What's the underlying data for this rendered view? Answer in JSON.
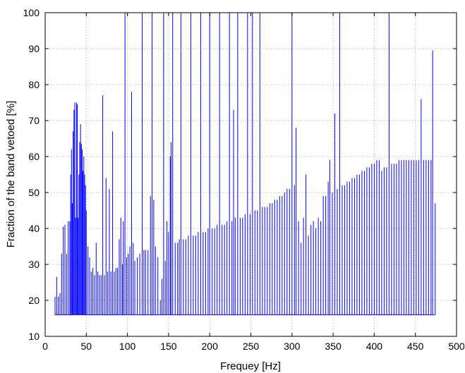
{
  "chart_data": {
    "type": "line",
    "title": "",
    "xlabel": "Frequey [Hz]",
    "ylabel": "Fraction of the band vetoed [%]",
    "xlim": [
      0,
      500
    ],
    "ylim": [
      10,
      100
    ],
    "xticks": [
      0,
      50,
      100,
      150,
      200,
      250,
      300,
      350,
      400,
      450,
      500
    ],
    "yticks": [
      10,
      20,
      30,
      40,
      50,
      60,
      70,
      80,
      90,
      100
    ],
    "grid": true,
    "legend": "none",
    "series": [
      {
        "color": "#0000ff",
        "baseline": 16,
        "x_range": [
          12,
          474
        ],
        "spikes": [
          [
            12,
            21
          ],
          [
            14,
            26.5
          ],
          [
            16,
            21
          ],
          [
            18,
            22
          ],
          [
            20,
            33
          ],
          [
            22,
            40.5
          ],
          [
            24,
            41
          ],
          [
            26,
            33
          ],
          [
            28,
            42
          ],
          [
            30,
            42
          ],
          [
            31,
            55
          ],
          [
            32,
            62
          ],
          [
            33,
            47
          ],
          [
            34,
            67
          ],
          [
            35,
            73
          ],
          [
            36,
            75
          ],
          [
            37,
            43
          ],
          [
            38,
            75
          ],
          [
            39,
            74.5
          ],
          [
            40,
            43
          ],
          [
            41,
            55
          ],
          [
            42,
            64
          ],
          [
            43,
            69
          ],
          [
            44,
            63.5
          ],
          [
            45,
            62
          ],
          [
            46,
            56
          ],
          [
            47,
            60
          ],
          [
            48,
            55
          ],
          [
            49,
            52
          ],
          [
            50,
            45
          ],
          [
            52,
            35
          ],
          [
            54,
            32
          ],
          [
            56,
            28
          ],
          [
            58,
            29
          ],
          [
            60,
            27
          ],
          [
            62,
            36
          ],
          [
            64,
            28
          ],
          [
            66,
            27
          ],
          [
            68,
            27
          ],
          [
            70,
            77
          ],
          [
            72,
            27
          ],
          [
            74,
            54
          ],
          [
            76,
            28
          ],
          [
            78,
            51
          ],
          [
            80,
            28
          ],
          [
            82,
            67
          ],
          [
            84,
            28
          ],
          [
            86,
            29
          ],
          [
            88,
            29
          ],
          [
            90,
            37
          ],
          [
            92,
            43
          ],
          [
            94,
            30
          ],
          [
            95,
            42
          ],
          [
            97,
            100
          ],
          [
            99,
            32
          ],
          [
            101,
            33
          ],
          [
            103,
            35
          ],
          [
            105,
            78
          ],
          [
            107,
            36
          ],
          [
            109,
            31
          ],
          [
            112,
            32
          ],
          [
            115,
            33
          ],
          [
            118,
            100
          ],
          [
            120,
            34
          ],
          [
            122,
            34
          ],
          [
            125,
            34
          ],
          [
            128,
            49
          ],
          [
            130,
            100
          ],
          [
            132,
            48
          ],
          [
            134,
            35
          ],
          [
            137,
            32
          ],
          [
            140,
            20
          ],
          [
            142,
            26
          ],
          [
            144,
            100
          ],
          [
            146,
            31
          ],
          [
            148,
            42
          ],
          [
            150,
            39
          ],
          [
            152,
            60
          ],
          [
            153,
            64
          ],
          [
            155,
            100
          ],
          [
            158,
            36
          ],
          [
            161,
            36
          ],
          [
            163,
            37
          ],
          [
            165,
            100
          ],
          [
            168,
            37
          ],
          [
            171,
            37
          ],
          [
            174,
            38
          ],
          [
            177,
            100
          ],
          [
            180,
            38
          ],
          [
            183,
            38
          ],
          [
            186,
            39
          ],
          [
            189,
            100
          ],
          [
            192,
            39
          ],
          [
            195,
            39
          ],
          [
            198,
            40
          ],
          [
            200,
            100
          ],
          [
            203,
            40
          ],
          [
            206,
            40
          ],
          [
            209,
            41
          ],
          [
            212,
            100
          ],
          [
            215,
            41
          ],
          [
            218,
            41
          ],
          [
            221,
            42
          ],
          [
            224,
            100
          ],
          [
            227,
            42
          ],
          [
            229,
            73
          ],
          [
            231,
            43
          ],
          [
            234,
            100
          ],
          [
            237,
            43
          ],
          [
            240,
            43
          ],
          [
            243,
            44
          ],
          [
            246,
            100
          ],
          [
            249,
            44
          ],
          [
            252,
            100
          ],
          [
            255,
            45
          ],
          [
            258,
            45
          ],
          [
            261,
            100
          ],
          [
            264,
            46
          ],
          [
            267,
            46
          ],
          [
            270,
            46
          ],
          [
            273,
            47
          ],
          [
            276,
            47
          ],
          [
            279,
            48
          ],
          [
            282,
            48
          ],
          [
            285,
            49
          ],
          [
            288,
            49
          ],
          [
            291,
            50
          ],
          [
            294,
            51
          ],
          [
            297,
            51
          ],
          [
            300,
            100
          ],
          [
            303,
            52
          ],
          [
            305,
            68
          ],
          [
            308,
            42
          ],
          [
            311,
            36
          ],
          [
            314,
            43
          ],
          [
            317,
            55
          ],
          [
            320,
            38
          ],
          [
            323,
            41
          ],
          [
            326,
            42
          ],
          [
            329,
            40
          ],
          [
            332,
            43
          ],
          [
            335,
            42
          ],
          [
            338,
            49
          ],
          [
            341,
            49
          ],
          [
            344,
            53
          ],
          [
            346,
            59
          ],
          [
            349,
            50
          ],
          [
            352,
            72
          ],
          [
            355,
            51
          ],
          [
            358,
            100
          ],
          [
            361,
            52
          ],
          [
            364,
            52
          ],
          [
            367,
            53
          ],
          [
            370,
            53
          ],
          [
            373,
            54
          ],
          [
            376,
            54
          ],
          [
            379,
            55
          ],
          [
            382,
            55
          ],
          [
            385,
            56
          ],
          [
            388,
            56
          ],
          [
            391,
            57
          ],
          [
            394,
            57
          ],
          [
            397,
            58
          ],
          [
            400,
            58
          ],
          [
            403,
            59
          ],
          [
            406,
            59
          ],
          [
            409,
            56
          ],
          [
            412,
            57
          ],
          [
            415,
            57
          ],
          [
            418,
            100
          ],
          [
            421,
            58
          ],
          [
            424,
            58
          ],
          [
            427,
            58
          ],
          [
            430,
            59
          ],
          [
            433,
            59
          ],
          [
            436,
            59
          ],
          [
            439,
            59
          ],
          [
            442,
            59
          ],
          [
            445,
            59
          ],
          [
            448,
            59
          ],
          [
            451,
            59
          ],
          [
            454,
            59
          ],
          [
            457,
            76
          ],
          [
            460,
            59
          ],
          [
            463,
            59
          ],
          [
            466,
            59
          ],
          [
            469,
            59
          ],
          [
            471,
            89.5
          ],
          [
            474,
            47
          ]
        ]
      }
    ]
  }
}
